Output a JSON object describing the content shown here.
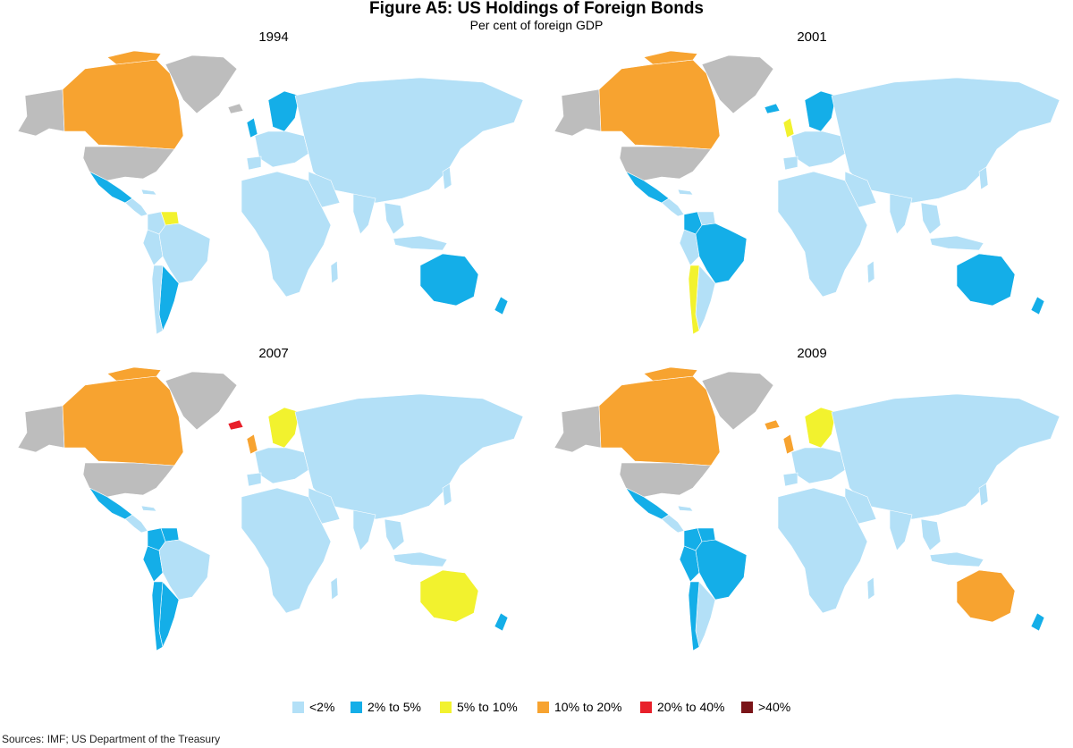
{
  "title": "Figure A5: US Holdings of Foreign Bonds",
  "subtitle": "Per cent of foreign GDP",
  "panels": [
    {
      "year": "1994",
      "canada": "orange",
      "australia": "2-5",
      "brazil": "lt2",
      "chile": "lt2",
      "venezuela": "yellow",
      "scandinavia": "2-5",
      "uk": "2-5",
      "iceland": "none",
      "argentina": "2-5",
      "mexico": "2-5",
      "nz": "2-5",
      "peru": "lt2",
      "colombia": "lt2"
    },
    {
      "year": "2001",
      "canada": "orange",
      "australia": "2-5",
      "brazil": "2-5",
      "chile": "yellow",
      "venezuela": "lt2",
      "scandinavia": "2-5",
      "uk": "yellow",
      "iceland": "2-5",
      "argentina": "lt2",
      "mexico": "2-5",
      "nz": "2-5",
      "peru": "lt2",
      "colombia": "2-5"
    },
    {
      "year": "2007",
      "canada": "orange",
      "australia": "yellow",
      "brazil": "lt2",
      "chile": "2-5",
      "venezuela": "2-5",
      "scandinavia": "yellow",
      "uk": "orange",
      "iceland": "red",
      "argentina": "2-5",
      "mexico": "2-5",
      "nz": "2-5",
      "peru": "2-5",
      "colombia": "2-5"
    },
    {
      "year": "2009",
      "canada": "orange",
      "australia": "orange",
      "brazil": "2-5",
      "chile": "2-5",
      "venezuela": "2-5",
      "scandinavia": "yellow",
      "uk": "orange",
      "iceland": "orange",
      "argentina": "lt2",
      "mexico": "2-5",
      "nz": "2-5",
      "peru": "2-5",
      "colombia": "2-5"
    }
  ],
  "legend": {
    "items": [
      {
        "key": "lt2",
        "label": "<2%",
        "color": "#b3e0f7"
      },
      {
        "key": "2-5",
        "label": "2% to 5%",
        "color": "#14aee8"
      },
      {
        "key": "yellow",
        "label": "5% to 10%",
        "color": "#f2f22e"
      },
      {
        "key": "orange",
        "label": "10% to 20%",
        "color": "#f7a330"
      },
      {
        "key": "red",
        "label": "20% to 40%",
        "color": "#e8202a"
      },
      {
        "key": "dark",
        "label": ">40%",
        "color": "#7a1418"
      }
    ],
    "no_data_color": "#bdbdbd"
  },
  "source": "Sources:  IMF; US Department of the Treasury"
}
